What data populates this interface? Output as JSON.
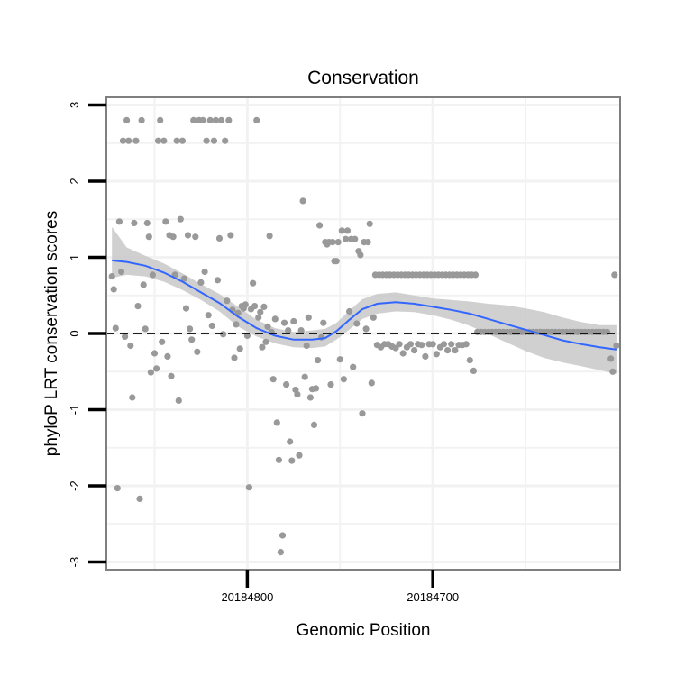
{
  "chart_data": {
    "type": "scatter",
    "title": "Conservation",
    "xlabel": "Genomic Position",
    "ylabel": "phyloP LRT conservation scores",
    "x_reversed": true,
    "xlim": [
      20184876,
      20184599
    ],
    "ylim": [
      -3.1,
      3.1
    ],
    "xticks": [
      {
        "value": 20184800,
        "label": "20184800"
      },
      {
        "value": 20184700,
        "label": "20184700"
      }
    ],
    "yticks": [
      {
        "value": 3,
        "label": "3"
      },
      {
        "value": 2,
        "label": "2"
      },
      {
        "value": 1,
        "label": "1"
      },
      {
        "value": 0,
        "label": "0"
      },
      {
        "value": -1,
        "label": "-1"
      },
      {
        "value": -2,
        "label": "-2"
      },
      {
        "value": -3,
        "label": "-3"
      }
    ],
    "grid": true,
    "hline": {
      "y": 0,
      "style": "dashed",
      "color": "#000000"
    },
    "point_color": "#999999",
    "smooth_color": "#3366FF",
    "band_color": "#C8C8C8",
    "points": [
      [
        20184873,
        0.75
      ],
      [
        20184872,
        0.58
      ],
      [
        20184871,
        0.07
      ],
      [
        20184870,
        -2.03
      ],
      [
        20184869,
        1.47
      ],
      [
        20184868,
        0.81
      ],
      [
        20184867,
        2.53
      ],
      [
        20184866,
        -0.04
      ],
      [
        20184865,
        2.8
      ],
      [
        20184864,
        2.53
      ],
      [
        20184863,
        -0.16
      ],
      [
        20184862,
        -0.84
      ],
      [
        20184861,
        1.45
      ],
      [
        20184860,
        2.53
      ],
      [
        20184859,
        0.36
      ],
      [
        20184858,
        -2.17
      ],
      [
        20184857,
        2.8
      ],
      [
        20184856,
        0.64
      ],
      [
        20184855,
        0.06
      ],
      [
        20184854,
        1.45
      ],
      [
        20184853,
        1.27
      ],
      [
        20184852,
        -0.51
      ],
      [
        20184851,
        0.77
      ],
      [
        20184850,
        -0.26
      ],
      [
        20184849,
        -0.46
      ],
      [
        20184848,
        2.53
      ],
      [
        20184847,
        2.8
      ],
      [
        20184846,
        -0.11
      ],
      [
        20184845,
        2.53
      ],
      [
        20184844,
        1.47
      ],
      [
        20184843,
        -0.3
      ],
      [
        20184842,
        1.29
      ],
      [
        20184841,
        -0.56
      ],
      [
        20184840,
        1.27
      ],
      [
        20184839,
        0.77
      ],
      [
        20184838,
        2.53
      ],
      [
        20184837,
        -0.88
      ],
      [
        20184836,
        1.5
      ],
      [
        20184835,
        2.53
      ],
      [
        20184834,
        0.72
      ],
      [
        20184833,
        0.33
      ],
      [
        20184832,
        1.29
      ],
      [
        20184831,
        0.06
      ],
      [
        20184830,
        -0.08
      ],
      [
        20184829,
        2.8
      ],
      [
        20184828,
        1.27
      ],
      [
        20184827,
        -0.24
      ],
      [
        20184826,
        2.8
      ],
      [
        20184825,
        0.67
      ],
      [
        20184824,
        2.8
      ],
      [
        20184823,
        0.81
      ],
      [
        20184822,
        2.53
      ],
      [
        20184821,
        0.24
      ],
      [
        20184820,
        2.8
      ],
      [
        20184819,
        0.1
      ],
      [
        20184818,
        2.53
      ],
      [
        20184817,
        2.8
      ],
      [
        20184816,
        0.7
      ],
      [
        20184815,
        1.25
      ],
      [
        20184814,
        2.8
      ],
      [
        20184813,
        -0.01
      ],
      [
        20184812,
        2.53
      ],
      [
        20184811,
        0.43
      ],
      [
        20184810,
        2.8
      ],
      [
        20184809,
        1.29
      ],
      [
        20184808,
        0.31
      ],
      [
        20184807,
        -0.32
      ],
      [
        20184806,
        0.12
      ],
      [
        20184805,
        0.27
      ],
      [
        20184804,
        -0.2
      ],
      [
        20184803,
        0.36
      ],
      [
        20184802,
        0.33
      ],
      [
        20184801,
        0.38
      ],
      [
        20184800,
        -0.03
      ],
      [
        20184799,
        -2.02
      ],
      [
        20184798,
        0.32
      ],
      [
        20184797,
        0.66
      ],
      [
        20184796,
        0.36
      ],
      [
        20184795,
        2.8
      ],
      [
        20184794,
        0.21
      ],
      [
        20184793,
        0.28
      ],
      [
        20184792,
        -0.18
      ],
      [
        20184791,
        0.35
      ],
      [
        20184790,
        -0.11
      ],
      [
        20184789,
        0.09
      ],
      [
        20184788,
        1.28
      ],
      [
        20184787,
        0.02
      ],
      [
        20184786,
        -0.6
      ],
      [
        20184785,
        0.19
      ],
      [
        20184784,
        -1.17
      ],
      [
        20184783,
        -1.66
      ],
      [
        20184782,
        -2.87
      ],
      [
        20184781,
        -2.65
      ],
      [
        20184780,
        0.14
      ],
      [
        20184779,
        -0.67
      ],
      [
        20184778,
        0.04
      ],
      [
        20184777,
        -1.42
      ],
      [
        20184776,
        -1.67
      ],
      [
        20184775,
        0.16
      ],
      [
        20184774,
        -0.74
      ],
      [
        20184773,
        -0.8
      ],
      [
        20184772,
        -1.6
      ],
      [
        20184771,
        0.04
      ],
      [
        20184770,
        1.74
      ],
      [
        20184769,
        -0.57
      ],
      [
        20184768,
        -0.16
      ],
      [
        20184767,
        0.21
      ],
      [
        20184766,
        -0.84
      ],
      [
        20184765,
        -0.73
      ],
      [
        20184764,
        -1.2
      ],
      [
        20184763,
        -0.72
      ],
      [
        20184762,
        -0.35
      ],
      [
        20184761,
        1.42
      ],
      [
        20184760,
        -0.05
      ],
      [
        20184759,
        0.14
      ],
      [
        20184758,
        1.2
      ],
      [
        20184757,
        1.17
      ],
      [
        20184756,
        1.2
      ],
      [
        20184755,
        -0.67
      ],
      [
        20184754,
        1.2
      ],
      [
        20184753,
        0.95
      ],
      [
        20184752,
        0.95
      ],
      [
        20184751,
        1.2
      ],
      [
        20184750,
        -0.34
      ],
      [
        20184749,
        1.35
      ],
      [
        20184748,
        -0.6
      ],
      [
        20184747,
        1.24
      ],
      [
        20184746,
        1.35
      ],
      [
        20184745,
        0.29
      ],
      [
        20184744,
        1.24
      ],
      [
        20184743,
        -0.44
      ],
      [
        20184742,
        1.24
      ],
      [
        20184741,
        0.13
      ],
      [
        20184740,
        1.08
      ],
      [
        20184739,
        1.03
      ],
      [
        20184738,
        -1.05
      ],
      [
        20184737,
        1.2
      ],
      [
        20184736,
        0.06
      ],
      [
        20184735,
        1.2
      ],
      [
        20184734,
        1.44
      ],
      [
        20184733,
        -0.65
      ],
      [
        20184732,
        0.21
      ],
      [
        20184731,
        0.77
      ],
      [
        20184730,
        -0.15
      ],
      [
        20184729,
        0.77
      ],
      [
        20184728,
        -0.18
      ],
      [
        20184727,
        0.77
      ],
      [
        20184726,
        -0.14
      ],
      [
        20184725,
        0.77
      ],
      [
        20184724,
        -0.14
      ],
      [
        20184723,
        0.77
      ],
      [
        20184722,
        -0.17
      ],
      [
        20184721,
        0.77
      ],
      [
        20184720,
        -0.19
      ],
      [
        20184719,
        0.77
      ],
      [
        20184718,
        -0.14
      ],
      [
        20184717,
        0.77
      ],
      [
        20184716,
        -0.26
      ],
      [
        20184715,
        0.77
      ],
      [
        20184714,
        -0.18
      ],
      [
        20184713,
        0.77
      ],
      [
        20184712,
        -0.14
      ],
      [
        20184711,
        0.77
      ],
      [
        20184710,
        -0.22
      ],
      [
        20184709,
        0.77
      ],
      [
        20184708,
        -0.14
      ],
      [
        20184707,
        0.77
      ],
      [
        20184706,
        -0.15
      ],
      [
        20184705,
        0.77
      ],
      [
        20184704,
        -0.3
      ],
      [
        20184703,
        0.77
      ],
      [
        20184702,
        -0.14
      ],
      [
        20184701,
        0.77
      ],
      [
        20184700,
        -0.14
      ],
      [
        20184699,
        0.77
      ],
      [
        20184698,
        -0.27
      ],
      [
        20184697,
        0.77
      ],
      [
        20184696,
        -0.18
      ],
      [
        20184695,
        0.77
      ],
      [
        20184694,
        -0.14
      ],
      [
        20184693,
        0.77
      ],
      [
        20184692,
        -0.22
      ],
      [
        20184691,
        0.77
      ],
      [
        20184690,
        -0.14
      ],
      [
        20184689,
        0.77
      ],
      [
        20184688,
        -0.22
      ],
      [
        20184687,
        0.77
      ],
      [
        20184686,
        -0.15
      ],
      [
        20184685,
        0.77
      ],
      [
        20184684,
        -0.15
      ],
      [
        20184683,
        0.77
      ],
      [
        20184682,
        -0.14
      ],
      [
        20184681,
        0.77
      ],
      [
        20184680,
        -0.35
      ],
      [
        20184679,
        0.77
      ],
      [
        20184678,
        -0.49
      ],
      [
        20184677,
        0.77
      ],
      [
        20184676,
        0.02
      ],
      [
        20184674,
        0.02
      ],
      [
        20184672,
        0.02
      ],
      [
        20184670,
        0.02
      ],
      [
        20184668,
        0.02
      ],
      [
        20184666,
        0.02
      ],
      [
        20184664,
        0.02
      ],
      [
        20184662,
        0.02
      ],
      [
        20184660,
        0.02
      ],
      [
        20184658,
        0.02
      ],
      [
        20184656,
        0.02
      ],
      [
        20184654,
        0.02
      ],
      [
        20184652,
        0.02
      ],
      [
        20184650,
        0.02
      ],
      [
        20184648,
        0.02
      ],
      [
        20184646,
        0.02
      ],
      [
        20184644,
        0.02
      ],
      [
        20184642,
        0.02
      ],
      [
        20184640,
        0.02
      ],
      [
        20184638,
        0.02
      ],
      [
        20184636,
        0.02
      ],
      [
        20184634,
        0.02
      ],
      [
        20184632,
        0.02
      ],
      [
        20184630,
        0.02
      ],
      [
        20184628,
        0.02
      ],
      [
        20184626,
        0.02
      ],
      [
        20184624,
        0.02
      ],
      [
        20184622,
        0.02
      ],
      [
        20184620,
        0.02
      ],
      [
        20184618,
        0.02
      ],
      [
        20184616,
        0.02
      ],
      [
        20184614,
        0.02
      ],
      [
        20184612,
        0.02
      ],
      [
        20184610,
        0.02
      ],
      [
        20184608,
        0.02
      ],
      [
        20184606,
        0.02
      ],
      [
        20184604,
        -0.33
      ],
      [
        20184603,
        -0.5
      ],
      [
        20184602,
        0.77
      ],
      [
        20184601,
        -0.16
      ]
    ],
    "smooth": [
      [
        20184873,
        0.96
      ],
      [
        20184865,
        0.94
      ],
      [
        20184855,
        0.89
      ],
      [
        20184845,
        0.8
      ],
      [
        20184835,
        0.68
      ],
      [
        20184825,
        0.54
      ],
      [
        20184815,
        0.4
      ],
      [
        20184805,
        0.22
      ],
      [
        20184795,
        0.07
      ],
      [
        20184785,
        -0.03
      ],
      [
        20184775,
        -0.08
      ],
      [
        20184765,
        -0.08
      ],
      [
        20184758,
        -0.06
      ],
      [
        20184752,
        0.03
      ],
      [
        20184745,
        0.18
      ],
      [
        20184738,
        0.32
      ],
      [
        20184730,
        0.39
      ],
      [
        20184720,
        0.41
      ],
      [
        20184710,
        0.39
      ],
      [
        20184700,
        0.35
      ],
      [
        20184690,
        0.31
      ],
      [
        20184680,
        0.26
      ],
      [
        20184670,
        0.19
      ],
      [
        20184660,
        0.12
      ],
      [
        20184650,
        0.05
      ],
      [
        20184640,
        -0.02
      ],
      [
        20184630,
        -0.09
      ],
      [
        20184620,
        -0.14
      ],
      [
        20184610,
        -0.18
      ],
      [
        20184601,
        -0.21
      ]
    ],
    "band": [
      [
        20184873,
        0.73,
        1.4
      ],
      [
        20184865,
        0.77,
        1.13
      ],
      [
        20184855,
        0.75,
        1.02
      ],
      [
        20184845,
        0.68,
        0.92
      ],
      [
        20184835,
        0.57,
        0.79
      ],
      [
        20184825,
        0.44,
        0.65
      ],
      [
        20184815,
        0.29,
        0.52
      ],
      [
        20184805,
        0.09,
        0.35
      ],
      [
        20184795,
        -0.04,
        0.18
      ],
      [
        20184785,
        -0.13,
        0.07
      ],
      [
        20184775,
        -0.18,
        0.02
      ],
      [
        20184765,
        -0.19,
        0.04
      ],
      [
        20184758,
        -0.17,
        0.06
      ],
      [
        20184752,
        -0.08,
        0.14
      ],
      [
        20184745,
        0.05,
        0.3
      ],
      [
        20184738,
        0.19,
        0.45
      ],
      [
        20184730,
        0.26,
        0.52
      ],
      [
        20184720,
        0.29,
        0.54
      ],
      [
        20184710,
        0.28,
        0.5
      ],
      [
        20184700,
        0.24,
        0.46
      ],
      [
        20184690,
        0.18,
        0.44
      ],
      [
        20184680,
        0.1,
        0.42
      ],
      [
        20184670,
        -0.01,
        0.39
      ],
      [
        20184660,
        -0.12,
        0.37
      ],
      [
        20184650,
        -0.23,
        0.33
      ],
      [
        20184640,
        -0.32,
        0.28
      ],
      [
        20184630,
        -0.38,
        0.21
      ],
      [
        20184620,
        -0.43,
        0.15
      ],
      [
        20184610,
        -0.48,
        0.11
      ],
      [
        20184601,
        -0.53,
        0.11
      ]
    ]
  }
}
